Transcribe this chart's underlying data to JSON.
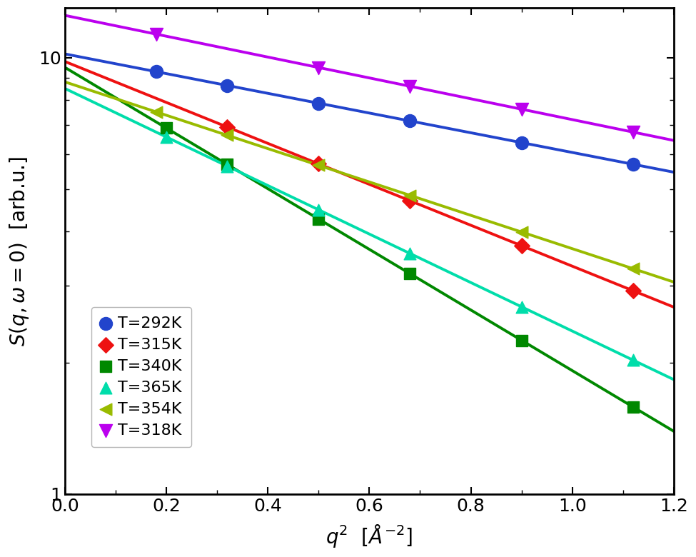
{
  "series": [
    {
      "label": "T=292K",
      "color": "#2244cc",
      "marker": "o",
      "markersize": 13,
      "A": 10.2,
      "B": 0.52,
      "scatter_x": [
        0.18,
        0.32,
        0.5,
        0.68,
        0.9,
        1.12
      ]
    },
    {
      "label": "T=315K",
      "color": "#ee1111",
      "marker": "D",
      "markersize": 11,
      "A": 9.8,
      "B": 1.08,
      "scatter_x": [
        0.32,
        0.5,
        0.68,
        0.9,
        1.12
      ]
    },
    {
      "label": "T=340K",
      "color": "#008800",
      "marker": "s",
      "markersize": 11,
      "A": 9.5,
      "B": 1.6,
      "scatter_x": [
        0.2,
        0.32,
        0.5,
        0.68,
        0.9,
        1.12
      ]
    },
    {
      "label": "T=365K",
      "color": "#00ddaa",
      "marker": "^",
      "markersize": 12,
      "A": 8.5,
      "B": 1.28,
      "scatter_x": [
        0.2,
        0.32,
        0.5,
        0.68,
        0.9,
        1.12
      ]
    },
    {
      "label": "T=354K",
      "color": "#99bb00",
      "marker": "<",
      "markersize": 12,
      "A": 8.8,
      "B": 0.88,
      "scatter_x": [
        0.18,
        0.32,
        0.5,
        0.68,
        0.9,
        1.12
      ]
    },
    {
      "label": "T=318K",
      "color": "#bb00ee",
      "marker": "v",
      "markersize": 13,
      "A": 12.5,
      "B": 0.55,
      "scatter_x": [
        0.18,
        0.5,
        0.68,
        0.9,
        1.12
      ]
    }
  ],
  "xlim": [
    0.0,
    1.2
  ],
  "ylim": [
    1.0,
    13.0
  ],
  "xlabel": "$q^2$  [$\\AA^{-2}$]",
  "ylabel": "$S(q, \\omega = 0)$  [arb.u.]",
  "xlabel_fontsize": 20,
  "ylabel_fontsize": 20,
  "tick_fontsize": 18,
  "legend_fontsize": 16,
  "line_width": 2.8,
  "background_color": "#ffffff"
}
